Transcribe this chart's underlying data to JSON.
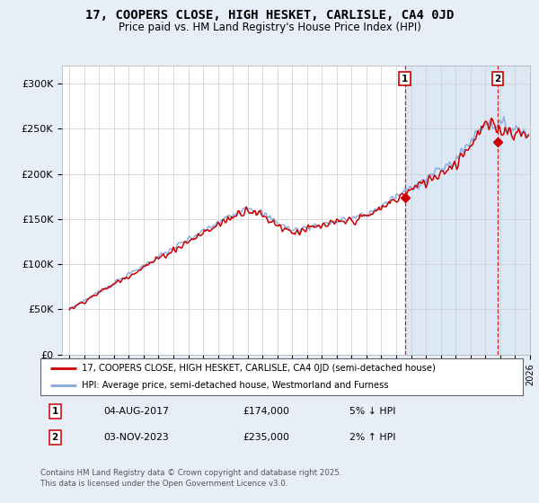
{
  "title": "17, COOPERS CLOSE, HIGH HESKET, CARLISLE, CA4 0JD",
  "subtitle": "Price paid vs. HM Land Registry's House Price Index (HPI)",
  "legend_line1": "17, COOPERS CLOSE, HIGH HESKET, CARLISLE, CA4 0JD (semi-detached house)",
  "legend_line2": "HPI: Average price, semi-detached house, Westmorland and Furness",
  "annotation1_date": "04-AUG-2017",
  "annotation1_price": "£174,000",
  "annotation1_hpi": "5% ↓ HPI",
  "annotation2_date": "03-NOV-2023",
  "annotation2_price": "£235,000",
  "annotation2_hpi": "2% ↑ HPI",
  "footnote": "Contains HM Land Registry data © Crown copyright and database right 2025.\nThis data is licensed under the Open Government Licence v3.0.",
  "hpi_color": "#88aadd",
  "price_color": "#cc0000",
  "dashed_vline_color": "#cc0000",
  "background_color": "#e8eef7",
  "plot_bg_color": "#ffffff",
  "shade_color": "#dde8f5",
  "ylim": [
    0,
    320000
  ],
  "yticks": [
    0,
    50000,
    100000,
    150000,
    200000,
    250000,
    300000
  ],
  "ytick_labels": [
    "£0",
    "£50K",
    "£100K",
    "£150K",
    "£200K",
    "£250K",
    "£300K"
  ],
  "xlim_start": 1994.5,
  "xlim_end": 2026.0,
  "sale1_year": 2017.583,
  "sale2_year": 2023.836,
  "sale1_price": 174000,
  "sale2_price": 235000,
  "marker1_label": "1",
  "marker2_label": "2"
}
